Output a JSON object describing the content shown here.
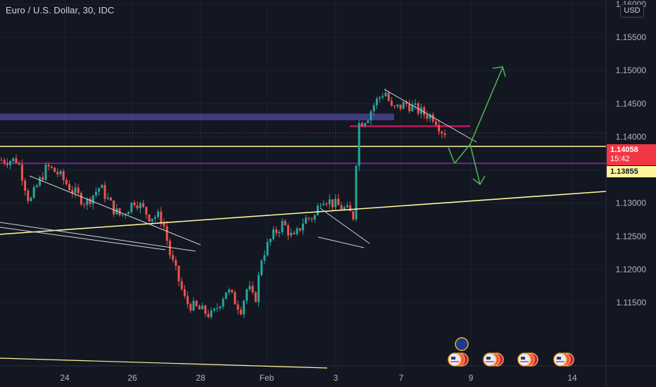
{
  "chart": {
    "title": "Euro / U.S. Dollar, 30, IDC",
    "currency": "USD",
    "last_price": "1.14058",
    "countdown": "15:42",
    "level_price": "1.13855"
  },
  "chart_data": {
    "type": "candlestick",
    "title": "Euro / U.S. Dollar, 30, IDC",
    "xlabel": "",
    "ylabel": "",
    "ylim": [
      1.1113,
      1.16
    ],
    "x_tick_labels": [
      "24",
      "26",
      "28",
      "Feb",
      "3",
      "7",
      "9",
      "14"
    ],
    "y_tick_labels": [
      "1.16000",
      "1.15500",
      "1.15000",
      "1.14500",
      "1.14000",
      "1.13500",
      "1.13000",
      "1.12500",
      "1.12000",
      "1.11500"
    ],
    "y_ticks": [
      1.16,
      1.155,
      1.15,
      1.145,
      1.14,
      1.135,
      1.13,
      1.125,
      1.12,
      1.115
    ],
    "price_path": [
      [
        1.1365,
        23
      ],
      [
        1.134,
        30
      ],
      [
        1.13,
        40
      ],
      [
        1.1325,
        50
      ],
      [
        1.1355,
        65
      ],
      [
        1.1345,
        80
      ],
      [
        1.132,
        100
      ],
      [
        1.13,
        120
      ],
      [
        1.1325,
        140
      ],
      [
        1.129,
        160
      ],
      [
        1.128,
        170
      ],
      [
        1.1305,
        190
      ],
      [
        1.128,
        210
      ],
      [
        1.128,
        225
      ],
      [
        1.127,
        230
      ],
      [
        1.122,
        240
      ],
      [
        1.119,
        250
      ],
      [
        1.115,
        262
      ],
      [
        1.114,
        280
      ],
      [
        1.113,
        300
      ],
      [
        1.117,
        320
      ],
      [
        1.114,
        340
      ],
      [
        1.1175,
        350
      ],
      [
        1.115,
        360
      ],
      [
        1.122,
        370
      ],
      [
        1.125,
        385
      ],
      [
        1.127,
        400
      ],
      [
        1.1245,
        415
      ],
      [
        1.1275,
        430
      ],
      [
        1.128,
        445
      ],
      [
        1.131,
        455
      ],
      [
        1.13,
        470
      ],
      [
        1.129,
        490
      ],
      [
        1.128,
        500
      ],
      [
        1.135,
        503
      ],
      [
        1.142,
        508
      ],
      [
        1.143,
        520
      ],
      [
        1.145,
        530
      ],
      [
        1.147,
        545
      ],
      [
        1.144,
        555
      ],
      [
        1.145,
        575
      ],
      [
        1.1435,
        600
      ],
      [
        1.143,
        615
      ],
      [
        1.141,
        625
      ],
      [
        1.14058,
        633
      ]
    ],
    "last_price": 1.14058,
    "annotations": {
      "horizontal_levels": [
        {
          "price": 1.13855,
          "color": "#fff59d"
        },
        {
          "price": 1.136,
          "color": "#7b1fa2"
        },
        {
          "price": 1.1416,
          "color": "#c2185b"
        }
      ],
      "zones": [
        {
          "price_low": 1.1425,
          "price_high": 1.1435,
          "color": "#6a5acd"
        }
      ],
      "projections": [
        "up-arrow",
        "down-arrow"
      ]
    },
    "event_icons": [
      "eu-flag-icon",
      "us-flag-icon",
      "us-flag-icon",
      "us-flag-icon",
      "us-flag-icon"
    ]
  }
}
